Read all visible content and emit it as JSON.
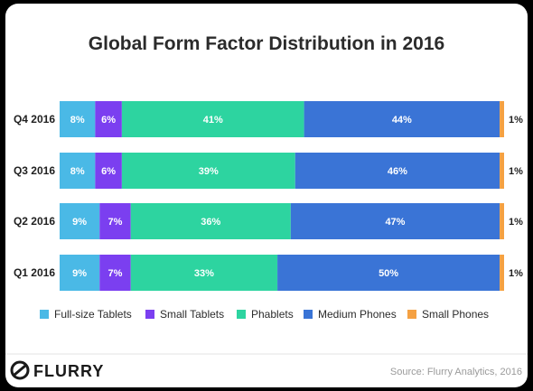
{
  "colors": {
    "Full-size Tablets": "#4ab9e6",
    "Small Tablets": "#7b3ff0",
    "Phablets": "#2dd4a0",
    "Medium Phones": "#3a74d6",
    "Small Phones": "#f5a142"
  },
  "logo": {
    "text": "FLURRY",
    "icon": "flurry-logo-icon"
  },
  "source": "Source: Flurry Analytics, 2016",
  "chart_data": {
    "type": "bar",
    "orientation": "horizontal",
    "stacked": true,
    "title": "Global Form Factor Distribution in 2016",
    "categories": [
      "Q4 2016",
      "Q3 2016",
      "Q2 2016",
      "Q1 2016"
    ],
    "series": [
      {
        "name": "Full-size Tablets",
        "values": [
          8,
          8,
          9,
          9
        ],
        "labels": [
          "8%",
          "8%",
          "9%",
          "9%"
        ]
      },
      {
        "name": "Small Tablets",
        "values": [
          6,
          6,
          7,
          7
        ],
        "labels": [
          "6%",
          "6%",
          "7%",
          "7%"
        ]
      },
      {
        "name": "Phablets",
        "values": [
          41,
          39,
          36,
          33
        ],
        "labels": [
          "41%",
          "39%",
          "36%",
          "33%"
        ]
      },
      {
        "name": "Medium Phones",
        "values": [
          44,
          46,
          47,
          50
        ],
        "labels": [
          "44%",
          "46%",
          "47%",
          "50%"
        ]
      },
      {
        "name": "Small Phones",
        "values": [
          1,
          1,
          1,
          1
        ],
        "labels": [
          "1%",
          "1%",
          "1%",
          "1%"
        ]
      }
    ],
    "xlim": [
      0,
      100
    ],
    "grid": false,
    "legend": "bottom"
  }
}
